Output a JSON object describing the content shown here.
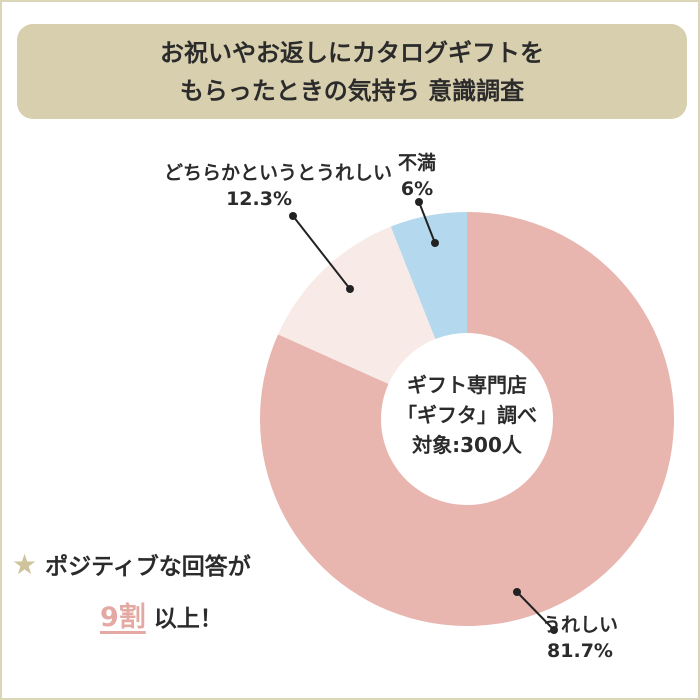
{
  "title": {
    "line1": "お祝いやお返しにカタログギフトを",
    "line2": "もらったときの気持ち 意識調査"
  },
  "center": {
    "line1": "ギフト専門店",
    "line2": "「ギフタ」調べ",
    "line3": "対象:300人"
  },
  "note": {
    "line1": "ポジティブな回答が",
    "highlight": "9割",
    "line2_rest": " 以上！",
    "icon": "star-icon"
  },
  "chart_data": {
    "type": "pie",
    "donut": true,
    "start": "top",
    "direction": "clockwise",
    "slices": [
      {
        "label": "うれしい",
        "value": 81.7,
        "value_label": "81.7%",
        "color": "#e8b5af"
      },
      {
        "label": "どちらかというとうれしい",
        "value": 12.3,
        "value_label": "12.3%",
        "color": "#f8ebe7"
      },
      {
        "label": "不満",
        "value": 6,
        "value_label": "6%",
        "color": "#b4d8ee"
      }
    ]
  }
}
